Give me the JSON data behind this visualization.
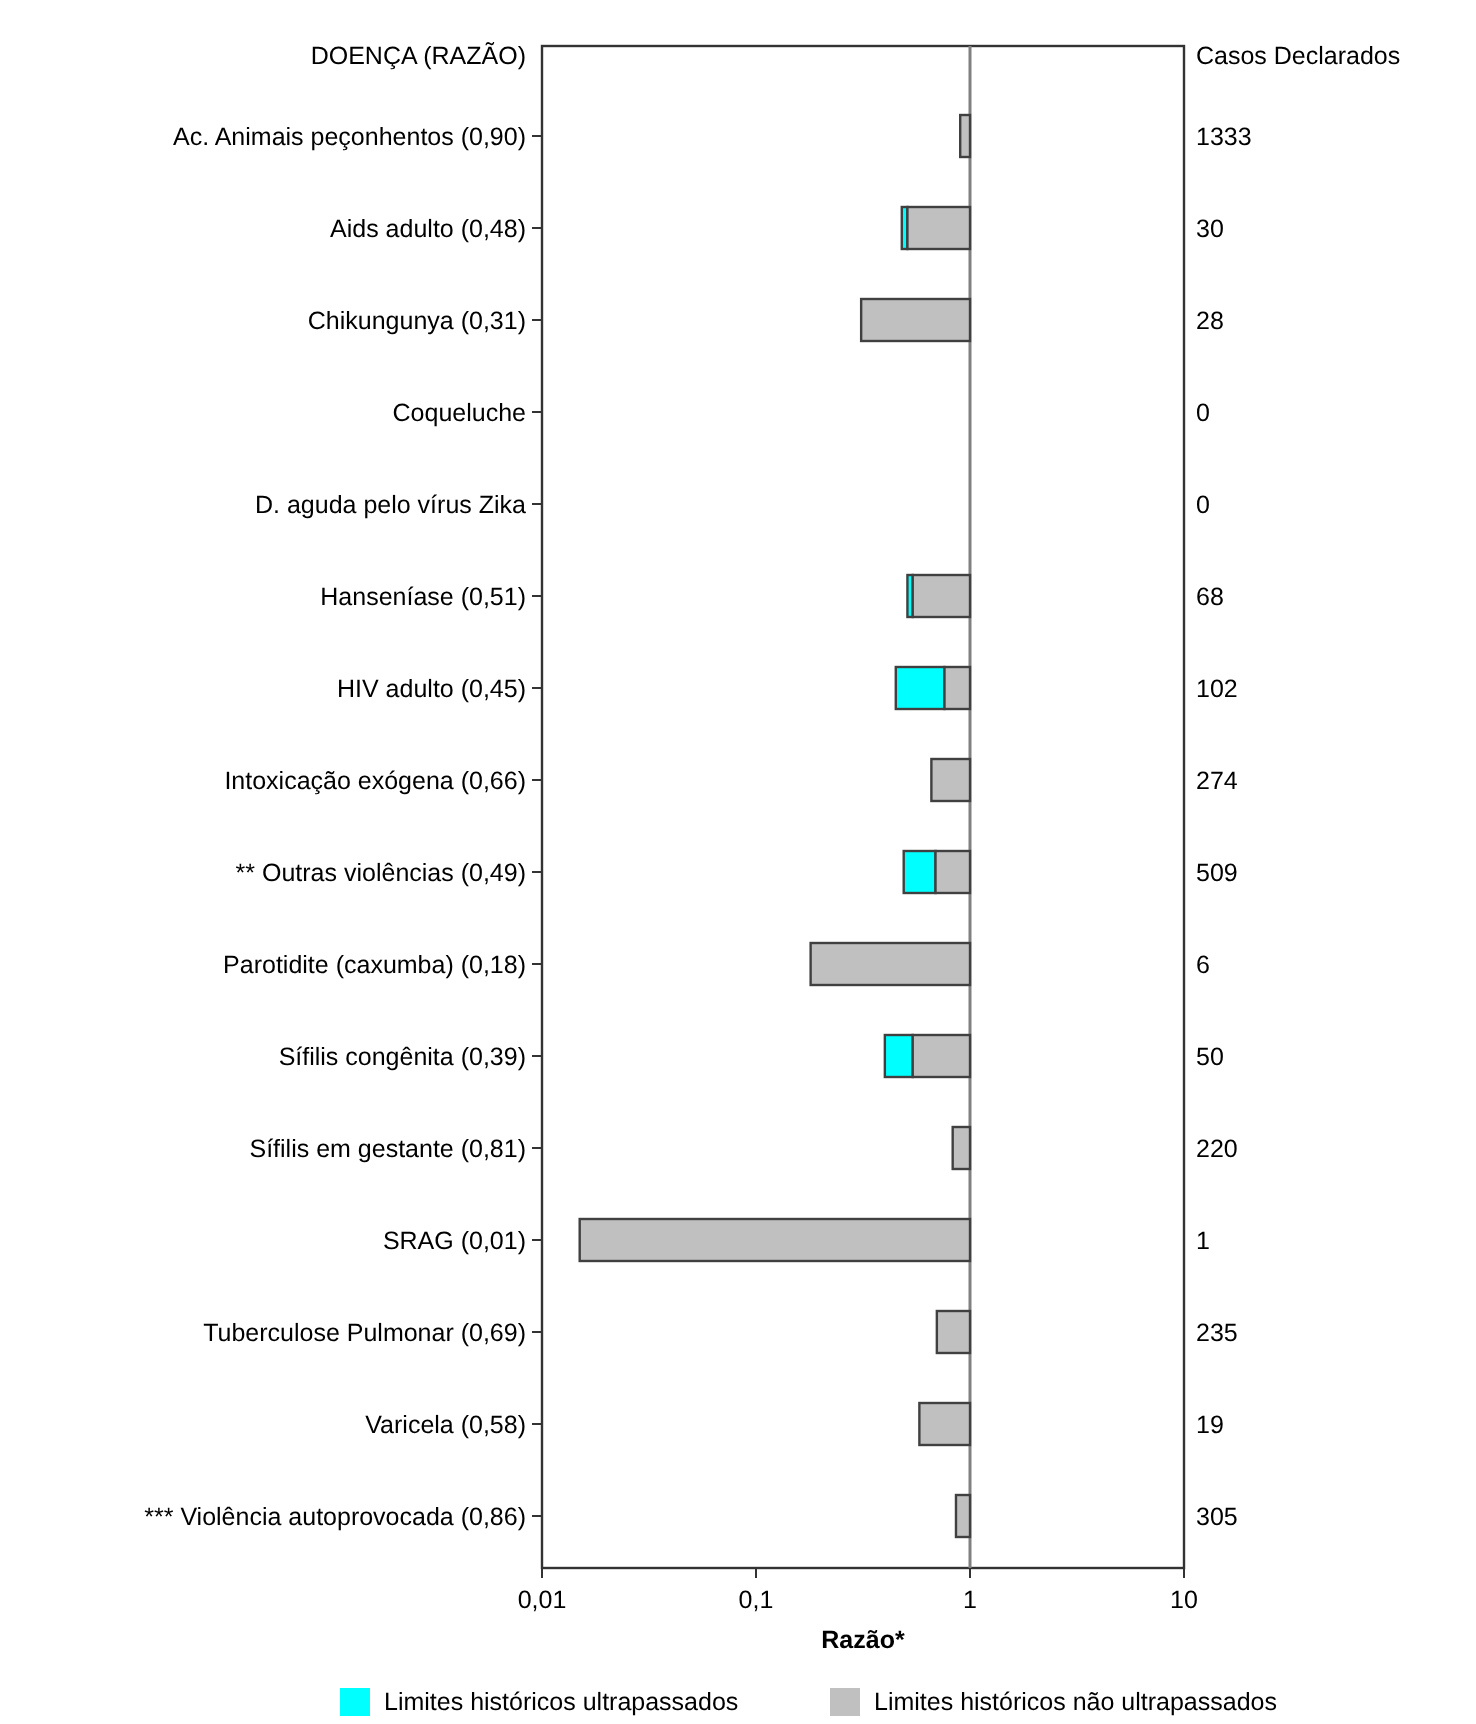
{
  "chart_data": {
    "type": "bar",
    "orientation": "horizontal",
    "log": "x",
    "ylabel": "DOENÇA (RAZÃO)",
    "y2label": "Casos Declarados",
    "xlabel": "Razão*",
    "categories": [
      "Ac. Animais peçonhentos (0,90)",
      "Aids adulto (0,48)",
      "Chikungunya (0,31)",
      "Coqueluche",
      "D. aguda pelo vírus Zika",
      "Hanseníase (0,51)",
      "HIV adulto (0,45)",
      "Intoxicação exógena (0,66)",
      "** Outras violências (0,49)",
      "Parotidite (caxumba) (0,18)",
      "Sífilis congênita (0,39)",
      "Sífilis em gestante (0,81)",
      "SRAG (0,01)",
      "Tuberculose Pulmonar (0,69)",
      "Varicela (0,58)",
      "*** Violência autoprovocada (0,86)"
    ],
    "y2_categories": [
      "1333",
      "30",
      "28",
      "0",
      "0",
      "68",
      "102",
      "274",
      "509",
      "6",
      "50",
      "220",
      "1",
      "235",
      "19",
      "305"
    ],
    "series": [
      {
        "name": "Limites históricos ultrapassados",
        "color": "#00ffff",
        "base": [
          null,
          0.48,
          null,
          null,
          null,
          0.51,
          0.45,
          null,
          0.49,
          null,
          0.4,
          null,
          null,
          null,
          null,
          null
        ],
        "values": [
          null,
          0.03,
          null,
          null,
          null,
          0.03,
          0.31,
          null,
          0.2,
          null,
          0.14,
          null,
          null,
          null,
          null,
          null
        ]
      },
      {
        "name": "Limites históricos não ultrapassados",
        "color": "#c0c0c0",
        "base": [
          0.9,
          0.51,
          0.31,
          null,
          null,
          0.54,
          0.76,
          0.66,
          0.69,
          0.18,
          0.54,
          0.83,
          0.015,
          0.7,
          0.58,
          0.86
        ],
        "values": [
          0.1,
          0.49,
          0.69,
          null,
          null,
          0.46,
          0.24,
          0.34,
          0.31,
          0.82,
          0.46,
          0.17,
          0.985,
          0.3,
          0.42,
          0.14
        ]
      }
    ],
    "xlim": [
      0.01,
      10
    ],
    "xticks": [
      {
        "value": 0.01,
        "label": "0,01"
      },
      {
        "value": 0.1,
        "label": "0,1"
      },
      1,
      10
    ],
    "ref_lines": [
      {
        "axis": "x",
        "value": 1,
        "color": "#808080"
      }
    ],
    "legend": "bottom"
  }
}
